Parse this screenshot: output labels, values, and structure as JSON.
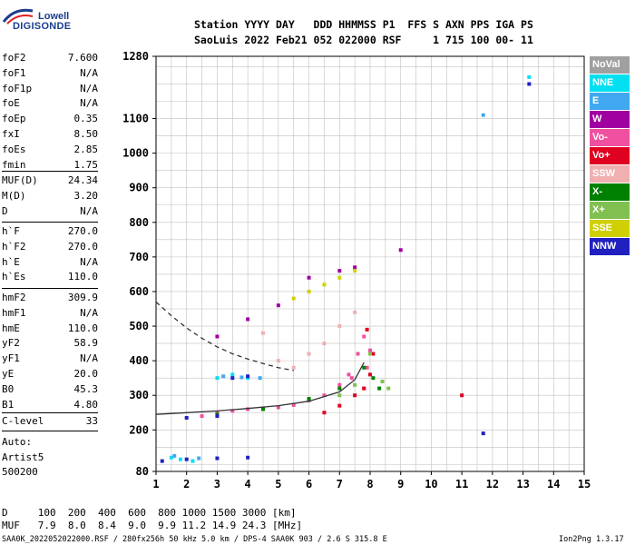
{
  "logo": {
    "word": "Lowell",
    "brand": "DIGISONDE"
  },
  "header": {
    "line1": "Station YYYY DAY   DDD HHMMSS P1  FFS S AXN PPS IGA PS",
    "line2": "SaoLuis 2022 Feb21 052 022000 RSF     1 715 100 00- 11"
  },
  "params_group1": [
    {
      "label": "foF2",
      "value": "7.600"
    },
    {
      "label": "foF1",
      "value": "N/A"
    },
    {
      "label": "foF1p",
      "value": "N/A"
    },
    {
      "label": "foE",
      "value": "N/A"
    },
    {
      "label": "foEp",
      "value": "0.35"
    },
    {
      "label": "fxI",
      "value": "8.50"
    },
    {
      "label": "foEs",
      "value": "2.85"
    },
    {
      "label": "fmin",
      "value": "1.75"
    }
  ],
  "params_group2": [
    {
      "label": "MUF(D)",
      "value": "24.34"
    },
    {
      "label": "M(D)",
      "value": "3.20"
    },
    {
      "label": "D",
      "value": "N/A"
    }
  ],
  "params_group3": [
    {
      "label": "h`F",
      "value": "270.0"
    },
    {
      "label": "h`F2",
      "value": "270.0"
    },
    {
      "label": "h`E",
      "value": "N/A"
    },
    {
      "label": "h`Es",
      "value": "110.0"
    }
  ],
  "params_group4": [
    {
      "label": "hmF2",
      "value": "309.9"
    },
    {
      "label": "hmF1",
      "value": "N/A"
    },
    {
      "label": "hmE",
      "value": "110.0"
    },
    {
      "label": "yF2",
      "value": "58.9"
    },
    {
      "label": "yF1",
      "value": "N/A"
    },
    {
      "label": "yE",
      "value": "20.0"
    },
    {
      "label": "B0",
      "value": "45.3"
    },
    {
      "label": "B1",
      "value": "4.80"
    }
  ],
  "clevel": {
    "label": "C-level",
    "value": "33"
  },
  "auto_lines": [
    "Auto:",
    "Artist5",
    "500200"
  ],
  "legend": [
    {
      "label": "NoVal",
      "color": "#a0a0a0"
    },
    {
      "label": "NNE",
      "color": "#00e0f0"
    },
    {
      "label": "E",
      "color": "#40a8f0"
    },
    {
      "label": "W",
      "color": "#a000a0"
    },
    {
      "label": "Vo-",
      "color": "#f050a0"
    },
    {
      "label": "Vo+",
      "color": "#e00020"
    },
    {
      "label": "SSW",
      "color": "#f0b0b0"
    },
    {
      "label": "X-",
      "color": "#008000"
    },
    {
      "label": "X+",
      "color": "#80c050"
    },
    {
      "label": "SSE",
      "color": "#d0d000"
    },
    {
      "label": "NNW",
      "color": "#2020c0"
    }
  ],
  "footer": {
    "d_line": "D     100  200  400  600  800 1000 1500 3000 [km]",
    "muf_line": "MUF   7.9  8.0  8.4  9.0  9.9 11.2 14.9 24.3 [MHz]",
    "info": "SAA0K_2022052022000.RSF / 280fx256h 50 kHz 5.0 km / DPS-4 SAA0K 903 / 2.6 S 315.8 E",
    "version": "Ion2Png 1.3.17"
  },
  "chart_data": {
    "type": "scatter",
    "title": "",
    "xlabel": "",
    "ylabel": "",
    "xlim": [
      1,
      15
    ],
    "ylim": [
      80,
      1280
    ],
    "x_ticks": [
      1,
      2,
      3,
      4,
      5,
      6,
      7,
      8,
      9,
      10,
      11,
      12,
      13,
      14,
      15
    ],
    "y_ticks": [
      80,
      200,
      300,
      400,
      500,
      600,
      700,
      800,
      900,
      1000,
      1100,
      1280
    ],
    "grid": true,
    "legend_placement": "right",
    "series": [
      {
        "name": "NoVal",
        "points": []
      },
      {
        "name": "NNE",
        "points": [
          [
            1.5,
            120
          ],
          [
            1.8,
            115
          ],
          [
            2.2,
            110
          ],
          [
            3.0,
            350
          ],
          [
            3.5,
            360
          ],
          [
            4.0,
            350
          ],
          [
            13.2,
            1220
          ]
        ]
      },
      {
        "name": "E",
        "points": [
          [
            1.6,
            125
          ],
          [
            2.4,
            118
          ],
          [
            3.2,
            355
          ],
          [
            3.8,
            352
          ],
          [
            4.4,
            350
          ],
          [
            11.7,
            1110
          ]
        ]
      },
      {
        "name": "W",
        "points": [
          [
            3.0,
            470
          ],
          [
            4.0,
            520
          ],
          [
            5.0,
            560
          ],
          [
            6.0,
            640
          ],
          [
            7.0,
            660
          ],
          [
            7.5,
            670
          ],
          [
            9.0,
            720
          ]
        ]
      },
      {
        "name": "Vo-",
        "points": [
          [
            2.5,
            240
          ],
          [
            3.0,
            250
          ],
          [
            3.5,
            255
          ],
          [
            4.0,
            260
          ],
          [
            4.5,
            262
          ],
          [
            5.0,
            265
          ],
          [
            5.5,
            272
          ],
          [
            6.0,
            285
          ],
          [
            6.5,
            300
          ],
          [
            7.0,
            330
          ],
          [
            7.3,
            360
          ],
          [
            7.6,
            420
          ],
          [
            7.8,
            470
          ],
          [
            8.0,
            430
          ],
          [
            7.9,
            380
          ],
          [
            7.4,
            350
          ],
          [
            7.8,
            320
          ]
        ]
      },
      {
        "name": "Vo+",
        "points": [
          [
            6.5,
            250
          ],
          [
            7.0,
            270
          ],
          [
            7.5,
            300
          ],
          [
            7.8,
            320
          ],
          [
            8.0,
            360
          ],
          [
            7.9,
            490
          ],
          [
            8.1,
            420
          ],
          [
            11.0,
            300
          ]
        ]
      },
      {
        "name": "SSW",
        "points": [
          [
            4.5,
            480
          ],
          [
            5.0,
            400
          ],
          [
            5.5,
            380
          ],
          [
            6.0,
            420
          ],
          [
            6.5,
            450
          ],
          [
            7.0,
            500
          ],
          [
            7.5,
            540
          ]
        ]
      },
      {
        "name": "X-",
        "points": [
          [
            3.0,
            245
          ],
          [
            4.5,
            260
          ],
          [
            6.0,
            290
          ],
          [
            7.0,
            320
          ],
          [
            7.8,
            380
          ],
          [
            8.1,
            350
          ],
          [
            8.3,
            320
          ]
        ]
      },
      {
        "name": "X+",
        "points": [
          [
            7.0,
            300
          ],
          [
            7.5,
            330
          ],
          [
            8.0,
            420
          ],
          [
            8.4,
            340
          ],
          [
            8.6,
            320
          ]
        ]
      },
      {
        "name": "SSE",
        "points": [
          [
            5.5,
            580
          ],
          [
            6.0,
            600
          ],
          [
            6.5,
            620
          ],
          [
            7.0,
            640
          ],
          [
            7.5,
            660
          ]
        ]
      },
      {
        "name": "NNW",
        "points": [
          [
            1.2,
            110
          ],
          [
            2.0,
            115
          ],
          [
            3.0,
            118
          ],
          [
            4.0,
            120
          ],
          [
            2.0,
            235
          ],
          [
            3.0,
            240
          ],
          [
            3.5,
            350
          ],
          [
            4.0,
            355
          ],
          [
            11.7,
            190
          ],
          [
            13.2,
            1200
          ]
        ]
      }
    ],
    "curves": [
      {
        "style": "solid",
        "points": [
          [
            1.0,
            245
          ],
          [
            2.0,
            250
          ],
          [
            3.0,
            255
          ],
          [
            4.0,
            262
          ],
          [
            5.0,
            270
          ],
          [
            6.0,
            283
          ],
          [
            7.0,
            310
          ],
          [
            7.5,
            345
          ],
          [
            7.8,
            395
          ]
        ]
      },
      {
        "style": "dashed",
        "points": [
          [
            1.0,
            570
          ],
          [
            1.5,
            530
          ],
          [
            2.0,
            495
          ],
          [
            2.5,
            465
          ],
          [
            3.0,
            440
          ],
          [
            3.5,
            420
          ],
          [
            4.0,
            405
          ],
          [
            4.5,
            392
          ],
          [
            5.0,
            380
          ],
          [
            5.5,
            372
          ]
        ]
      }
    ]
  }
}
